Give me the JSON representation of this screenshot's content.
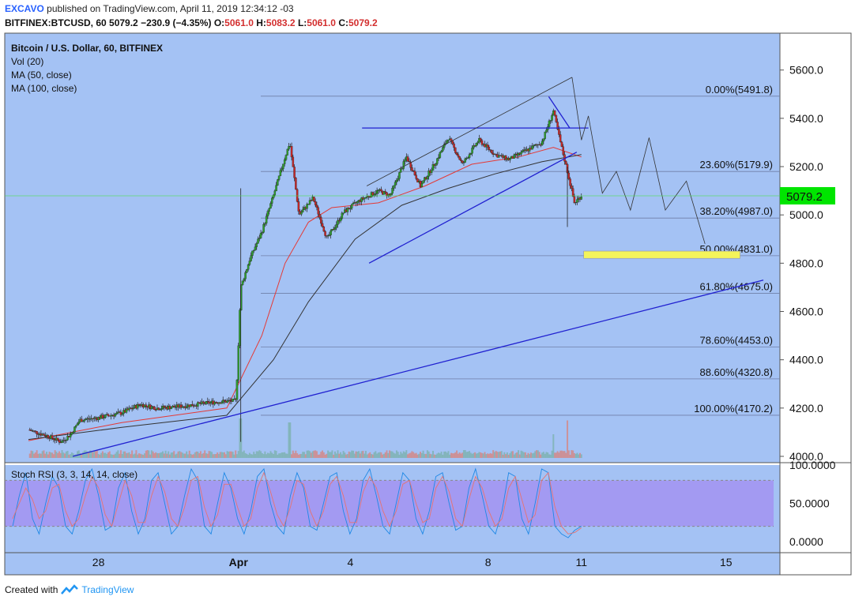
{
  "header": {
    "author": "EXCAVO",
    "published_text": "published on TradingView.com, April 11, 2019 12:34:12 -03",
    "symbol": "BITFINEX:BTCUSD, 60",
    "last": "5079.2",
    "change": "−230.9 (−4.35%)",
    "o_label": "O:",
    "o": "5061.0",
    "h_label": "H:",
    "h": "5083.2",
    "l_label": "L:",
    "l": "5061.0",
    "c_label": "C:",
    "c": "5079.2"
  },
  "legend": [
    "Bitcoin / U.S. Dollar, 60, BITFINEX",
    "Vol (20)",
    "MA (50, close)",
    "MA (100, close)"
  ],
  "rsi_label": "Stoch RSI (3, 3, 14, 14, close)",
  "footer": {
    "created_with": "Created with",
    "brand": "TradingView"
  },
  "colors": {
    "background": "#a4c2f4",
    "rsi_band": "#a39af2",
    "up": "#2e9e2e",
    "down": "#c62828",
    "price_tag": "#00e500",
    "trend": "#2020d0",
    "ma50": "#e53935",
    "ma100": "#333333",
    "target_box": "#f4f45a"
  },
  "chart_data": {
    "type": "candlestick",
    "symbol": "BTCUSD",
    "interval": "60",
    "y_axis": {
      "min": 4000,
      "max": 5700,
      "ticks": [
        4000,
        4200,
        4400,
        4600,
        4800,
        5000,
        5200,
        5400,
        5600
      ],
      "tick_labels": [
        "4000.0",
        "4200.0",
        "4400.0",
        "4600.0",
        "4800.0",
        "5000.0",
        "5200.0",
        "5400.0",
        "5600.0"
      ]
    },
    "x_axis": {
      "ticks": [
        "28",
        "Apr",
        "4",
        "8",
        "11",
        "15"
      ]
    },
    "last_price": 5079.2,
    "last_price_label": "5079.2",
    "price_path": [
      {
        "t": 0.0,
        "p": 4110
      },
      {
        "t": 0.8,
        "p": 4085
      },
      {
        "t": 1.4,
        "p": 4060
      },
      {
        "t": 1.8,
        "p": 4090
      },
      {
        "t": 2.2,
        "p": 4150
      },
      {
        "t": 3.0,
        "p": 4160
      },
      {
        "t": 4.0,
        "p": 4180
      },
      {
        "t": 4.8,
        "p": 4215
      },
      {
        "t": 5.5,
        "p": 4200
      },
      {
        "t": 6.3,
        "p": 4205
      },
      {
        "t": 7.2,
        "p": 4215
      },
      {
        "t": 8.0,
        "p": 4225
      },
      {
        "t": 8.9,
        "p": 4230
      },
      {
        "t": 9.1,
        "p": 4700
      },
      {
        "t": 9.5,
        "p": 4820
      },
      {
        "t": 10.0,
        "p": 4930
      },
      {
        "t": 10.5,
        "p": 5080
      },
      {
        "t": 11.0,
        "p": 5240
      },
      {
        "t": 11.2,
        "p": 5300
      },
      {
        "t": 11.6,
        "p": 5000
      },
      {
        "t": 12.2,
        "p": 5070
      },
      {
        "t": 12.8,
        "p": 4900
      },
      {
        "t": 13.5,
        "p": 5010
      },
      {
        "t": 14.2,
        "p": 5060
      },
      {
        "t": 15.0,
        "p": 5100
      },
      {
        "t": 15.5,
        "p": 5080
      },
      {
        "t": 16.2,
        "p": 5240
      },
      {
        "t": 16.8,
        "p": 5120
      },
      {
        "t": 17.4,
        "p": 5210
      },
      {
        "t": 18.0,
        "p": 5320
      },
      {
        "t": 18.6,
        "p": 5210
      },
      {
        "t": 19.3,
        "p": 5310
      },
      {
        "t": 20.0,
        "p": 5250
      },
      {
        "t": 20.6,
        "p": 5230
      },
      {
        "t": 21.4,
        "p": 5270
      },
      {
        "t": 22.0,
        "p": 5300
      },
      {
        "t": 22.5,
        "p": 5430
      },
      {
        "t": 22.8,
        "p": 5300
      },
      {
        "t": 23.1,
        "p": 5180
      },
      {
        "t": 23.4,
        "p": 5050
      },
      {
        "t": 23.7,
        "p": 5079.2
      }
    ],
    "ma50_path": [
      {
        "t": 0,
        "p": 4065
      },
      {
        "t": 4,
        "p": 4140
      },
      {
        "t": 8.5,
        "p": 4200
      },
      {
        "t": 10,
        "p": 4500
      },
      {
        "t": 11,
        "p": 4800
      },
      {
        "t": 12,
        "p": 4970
      },
      {
        "t": 13,
        "p": 5030
      },
      {
        "t": 15,
        "p": 5050
      },
      {
        "t": 17,
        "p": 5120
      },
      {
        "t": 19,
        "p": 5210
      },
      {
        "t": 21,
        "p": 5240
      },
      {
        "t": 22.5,
        "p": 5280
      },
      {
        "t": 23.7,
        "p": 5240
      }
    ],
    "ma100_path": [
      {
        "t": 0,
        "p": 4070
      },
      {
        "t": 4,
        "p": 4120
      },
      {
        "t": 8.5,
        "p": 4170
      },
      {
        "t": 10.5,
        "p": 4400
      },
      {
        "t": 12,
        "p": 4640
      },
      {
        "t": 14,
        "p": 4900
      },
      {
        "t": 16,
        "p": 5040
      },
      {
        "t": 18,
        "p": 5110
      },
      {
        "t": 20,
        "p": 5170
      },
      {
        "t": 22,
        "p": 5220
      },
      {
        "t": 23.7,
        "p": 5250
      }
    ],
    "fibonacci": [
      {
        "label": "0.00%(5491.8)",
        "price": 5491.8
      },
      {
        "label": "23.60%(5179.9)",
        "price": 5179.9
      },
      {
        "label": "38.20%(4987.0)",
        "price": 4987.0
      },
      {
        "label": "50.00%(4831.0)",
        "price": 4831.0
      },
      {
        "label": "61.80%(4675.0)",
        "price": 4675.0
      },
      {
        "label": "78.60%(4453.0)",
        "price": 4453.0
      },
      {
        "label": "88.60%(4320.8)",
        "price": 4320.8
      },
      {
        "label": "100.00%(4170.2)",
        "price": 4170.2
      }
    ],
    "trendlines": [
      {
        "from": {
          "t": 1.9,
          "p": 4000
        },
        "to": {
          "t": 31.5,
          "p": 4730
        }
      },
      {
        "from": {
          "t": 14.6,
          "p": 4800
        },
        "to": {
          "t": 23.5,
          "p": 5260
        }
      },
      {
        "from": {
          "t": 14.3,
          "p": 5360
        },
        "to": {
          "t": 24.0,
          "p": 5360
        }
      },
      {
        "from": {
          "t": 22.3,
          "p": 5490
        },
        "to": {
          "t": 23.2,
          "p": 5360
        }
      }
    ],
    "channel": [
      {
        "from": {
          "t": 14.5,
          "p": 5120
        },
        "to": {
          "t": 23.3,
          "p": 5570
        }
      }
    ],
    "projection_path": [
      {
        "t": 23.3,
        "p": 5570
      },
      {
        "t": 23.7,
        "p": 5310
      },
      {
        "t": 24.0,
        "p": 5410
      },
      {
        "t": 24.6,
        "p": 5090
      },
      {
        "t": 25.2,
        "p": 5180
      },
      {
        "t": 25.8,
        "p": 5020
      },
      {
        "t": 26.6,
        "p": 5320
      },
      {
        "t": 27.3,
        "p": 5020
      },
      {
        "t": 28.2,
        "p": 5140
      },
      {
        "t": 29.0,
        "p": 4880
      }
    ],
    "target_zone": {
      "t_from": 23.8,
      "t_to": 30.5,
      "p_from": 4820,
      "p_to": 4850
    },
    "volume_spikes": [
      {
        "t": 9.1,
        "v": 1.0
      },
      {
        "t": 11.2,
        "v": 0.9
      },
      {
        "t": 23.1,
        "v": 0.95
      },
      {
        "t": 22.5,
        "v": 0.6
      }
    ],
    "stoch_rsi": {
      "y_ticks": [
        0,
        50,
        100
      ],
      "y_tick_labels": [
        "0.0000",
        "50.0000",
        "100.0000"
      ],
      "band": [
        20,
        80
      ],
      "k": [
        20,
        60,
        90,
        30,
        10,
        50,
        85,
        70,
        20,
        10,
        40,
        80,
        95,
        60,
        15,
        20,
        70,
        90,
        40,
        10,
        30,
        80,
        90,
        50,
        10,
        20,
        60,
        95,
        80,
        20,
        10,
        50,
        90,
        70,
        30,
        10,
        40,
        85,
        95,
        50,
        20,
        10,
        60,
        90,
        70,
        20,
        15,
        50,
        85,
        90,
        40,
        10,
        30,
        80,
        95,
        60,
        20,
        10,
        50,
        90,
        80,
        30,
        10,
        40,
        85,
        90,
        50,
        15,
        20,
        70,
        95,
        60,
        20,
        10,
        40,
        90,
        85,
        30,
        10,
        50,
        95,
        90,
        20,
        10,
        5,
        15,
        20
      ],
      "d": [
        30,
        50,
        70,
        55,
        30,
        40,
        70,
        75,
        40,
        20,
        30,
        60,
        85,
        70,
        35,
        20,
        50,
        80,
        60,
        25,
        25,
        60,
        85,
        65,
        30,
        20,
        45,
        80,
        85,
        45,
        20,
        35,
        75,
        75,
        45,
        20,
        30,
        70,
        90,
        65,
        35,
        20,
        45,
        80,
        75,
        40,
        20,
        40,
        75,
        85,
        60,
        25,
        25,
        65,
        85,
        70,
        40,
        20,
        40,
        75,
        80,
        50,
        25,
        30,
        70,
        85,
        65,
        30,
        20,
        55,
        85,
        70,
        40,
        20,
        30,
        70,
        85,
        55,
        25,
        35,
        80,
        90,
        45,
        20,
        10,
        12,
        18
      ]
    }
  }
}
